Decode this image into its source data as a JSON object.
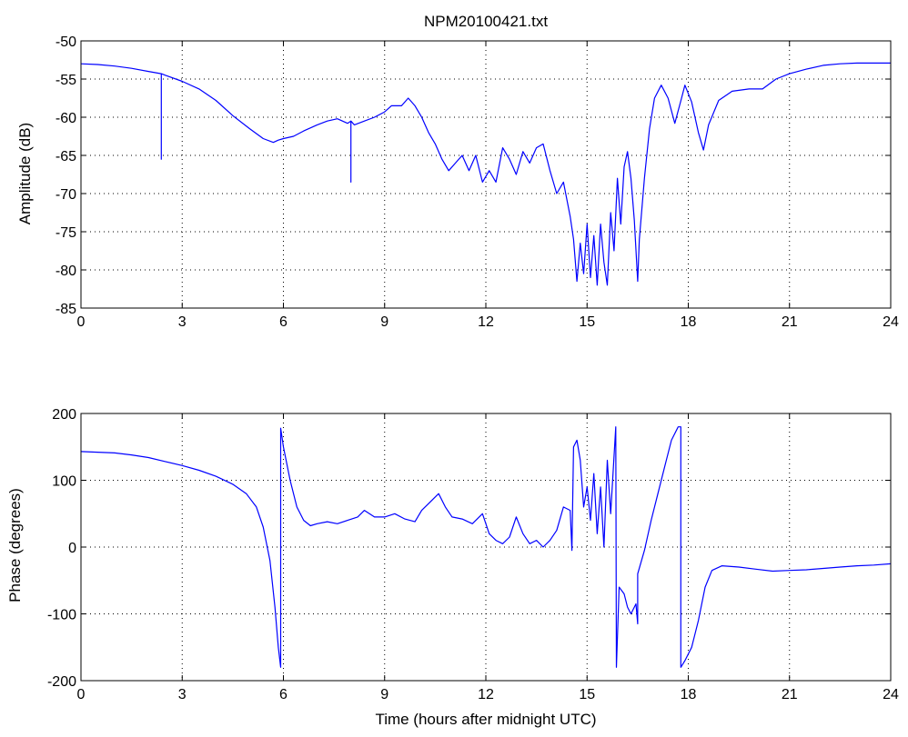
{
  "figure": {
    "title": "NPM20100421.txt"
  },
  "chart_data": [
    {
      "type": "line",
      "title": "NPM20100421.txt",
      "xlabel": "",
      "ylabel": "Amplitude (dB)",
      "xlim": [
        0,
        24
      ],
      "ylim": [
        -85,
        -50
      ],
      "xticks": [
        0,
        3,
        6,
        9,
        12,
        15,
        18,
        21,
        24
      ],
      "yticks": [
        -85,
        -80,
        -75,
        -70,
        -65,
        -60,
        -55,
        -50
      ],
      "xtick_labels": [
        "0",
        "3",
        "6",
        "9",
        "12",
        "15",
        "18",
        "21",
        "24"
      ],
      "ytick_labels": [
        "-85",
        "-80",
        "-75",
        "-70",
        "-65",
        "-60",
        "-55",
        "-50"
      ],
      "grid": true,
      "series": [
        {
          "color": "#0000ff",
          "x": [
            0,
            0.5,
            1.0,
            1.5,
            2.0,
            2.38,
            2.38,
            2.38,
            2.5,
            3.0,
            3.5,
            4.0,
            4.5,
            5.0,
            5.4,
            5.7,
            5.85,
            6.0,
            6.3,
            6.6,
            7.0,
            7.3,
            7.6,
            7.9,
            8.0,
            8.0,
            8.0,
            8.1,
            8.4,
            8.7,
            9.0,
            9.2,
            9.5,
            9.7,
            9.9,
            10.1,
            10.3,
            10.5,
            10.7,
            10.9,
            11.1,
            11.3,
            11.5,
            11.7,
            11.9,
            12.1,
            12.3,
            12.5,
            12.7,
            12.9,
            13.1,
            13.3,
            13.5,
            13.7,
            13.9,
            14.1,
            14.3,
            14.5,
            14.6,
            14.7,
            14.8,
            14.9,
            15.0,
            15.1,
            15.2,
            15.3,
            15.4,
            15.5,
            15.6,
            15.7,
            15.8,
            15.9,
            16.0,
            16.1,
            16.2,
            16.3,
            16.4,
            16.5,
            16.55,
            16.7,
            16.85,
            17.0,
            17.2,
            17.4,
            17.6,
            17.8,
            17.9,
            18.1,
            18.3,
            18.45,
            18.6,
            18.9,
            19.3,
            19.8,
            20.2,
            20.6,
            21.0,
            21.5,
            22.0,
            22.5,
            23.0,
            24.0
          ],
          "y": [
            -53.0,
            -53.1,
            -53.3,
            -53.6,
            -54.0,
            -54.3,
            -65.5,
            -54.3,
            -54.5,
            -55.3,
            -56.3,
            -57.8,
            -59.8,
            -61.5,
            -62.8,
            -63.3,
            -63.0,
            -62.8,
            -62.5,
            -61.8,
            -61.0,
            -60.5,
            -60.2,
            -60.8,
            -60.5,
            -68.5,
            -60.5,
            -61.0,
            -60.5,
            -60.0,
            -59.3,
            -58.5,
            -58.5,
            -57.5,
            -58.5,
            -60.0,
            -62.0,
            -63.5,
            -65.5,
            -67.0,
            -66.0,
            -65.0,
            -67.0,
            -65.0,
            -68.5,
            -67.0,
            -68.5,
            -64.0,
            -65.5,
            -67.5,
            -64.5,
            -66.0,
            -64.0,
            -63.5,
            -67.0,
            -70.0,
            -68.5,
            -73.0,
            -76.0,
            -81.5,
            -76.5,
            -80.5,
            -74.0,
            -81.0,
            -75.5,
            -82.0,
            -74.0,
            -79.0,
            -82.0,
            -72.5,
            -77.5,
            -68.0,
            -74.0,
            -66.5,
            -64.5,
            -68.0,
            -73.5,
            -81.5,
            -76.0,
            -68.0,
            -61.5,
            -57.5,
            -55.8,
            -57.5,
            -60.8,
            -57.5,
            -55.8,
            -58.0,
            -62.0,
            -64.3,
            -61.0,
            -57.8,
            -56.6,
            -56.3,
            -56.3,
            -55.0,
            -54.3,
            -53.7,
            -53.2,
            -53.0,
            -52.9,
            -52.9
          ]
        }
      ]
    },
    {
      "type": "line",
      "title": "",
      "xlabel": "Time (hours after midnight UTC)",
      "ylabel": "Phase (degrees)",
      "xlim": [
        0,
        24
      ],
      "ylim": [
        -200,
        200
      ],
      "xticks": [
        0,
        3,
        6,
        9,
        12,
        15,
        18,
        21,
        24
      ],
      "yticks": [
        -200,
        -100,
        0,
        100,
        200
      ],
      "xtick_labels": [
        "0",
        "3",
        "6",
        "9",
        "12",
        "15",
        "18",
        "21",
        "24"
      ],
      "ytick_labels": [
        "-200",
        "-100",
        "0",
        "100",
        "200"
      ],
      "grid": true,
      "series": [
        {
          "color": "#0000ff",
          "x": [
            0,
            0.5,
            1.0,
            1.5,
            2.0,
            2.5,
            3.0,
            3.5,
            4.0,
            4.5,
            4.9,
            5.2,
            5.4,
            5.6,
            5.75,
            5.85,
            5.92,
            5.92,
            6.0,
            6.2,
            6.4,
            6.6,
            6.8,
            7.0,
            7.3,
            7.6,
            7.9,
            8.2,
            8.4,
            8.7,
            9.0,
            9.3,
            9.6,
            9.9,
            10.1,
            10.3,
            10.6,
            10.8,
            11.0,
            11.3,
            11.6,
            11.9,
            12.1,
            12.3,
            12.5,
            12.7,
            12.9,
            13.1,
            13.3,
            13.5,
            13.7,
            13.9,
            14.1,
            14.3,
            14.5,
            14.55,
            14.6,
            14.7,
            14.8,
            14.9,
            15.0,
            15.1,
            15.2,
            15.3,
            15.4,
            15.5,
            15.6,
            15.7,
            15.85,
            15.87,
            15.95,
            16.1,
            16.2,
            16.3,
            16.45,
            16.5,
            16.5,
            16.7,
            16.9,
            17.1,
            17.3,
            17.5,
            17.7,
            17.78,
            17.78,
            17.9,
            18.1,
            18.3,
            18.5,
            18.7,
            19.0,
            19.5,
            20.0,
            20.5,
            21.0,
            21.5,
            22.0,
            22.5,
            23.0,
            23.5,
            24.0
          ],
          "y": [
            143,
            142,
            141,
            138,
            134,
            128,
            122,
            115,
            106,
            94,
            80,
            60,
            30,
            -20,
            -90,
            -150,
            -180,
            178,
            150,
            100,
            60,
            40,
            32,
            35,
            38,
            35,
            40,
            45,
            55,
            45,
            45,
            50,
            42,
            38,
            55,
            65,
            80,
            60,
            45,
            42,
            35,
            50,
            20,
            10,
            5,
            15,
            45,
            20,
            5,
            10,
            0,
            10,
            25,
            60,
            55,
            -5,
            150,
            160,
            130,
            60,
            90,
            40,
            110,
            20,
            90,
            0,
            130,
            50,
            180,
            -180,
            -60,
            -70,
            -90,
            -100,
            -85,
            -115,
            -40,
            -5,
            40,
            80,
            120,
            160,
            180,
            180,
            -180,
            -170,
            -150,
            -110,
            -60,
            -35,
            -28,
            -30,
            -33,
            -36,
            -35,
            -34,
            -32,
            -30,
            -28,
            -27,
            -25
          ]
        }
      ]
    }
  ]
}
